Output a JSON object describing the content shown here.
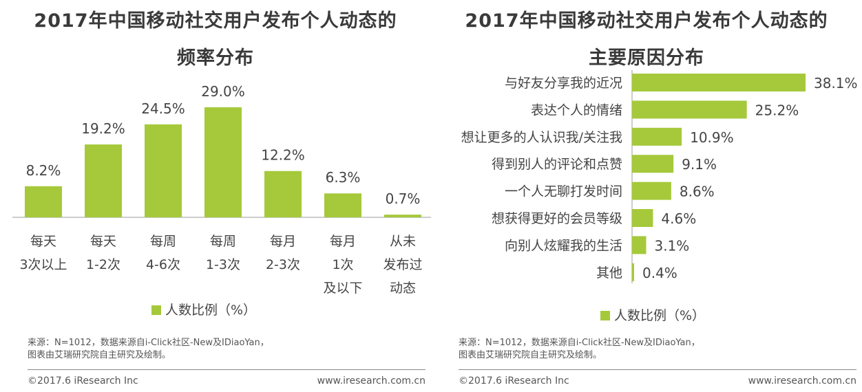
{
  "chart_data": [
    {
      "type": "bar",
      "orientation": "vertical",
      "title_line1": "2017年中国移动社交用户发布个人动态的",
      "title_line2": "频率分布",
      "categories": [
        [
          "每天",
          "3次以上"
        ],
        [
          "每天",
          "1-2次"
        ],
        [
          "每周",
          "4-6次"
        ],
        [
          "每周",
          "1-3次"
        ],
        [
          "每月",
          "2-3次"
        ],
        [
          "每月",
          "1次",
          "及以下"
        ],
        [
          "从未",
          "发布过",
          "动态"
        ]
      ],
      "values": [
        8.2,
        19.2,
        24.5,
        29.0,
        12.2,
        6.3,
        0.7
      ],
      "value_labels": [
        "8.2%",
        "19.2%",
        "24.5%",
        "29.0%",
        "12.2%",
        "6.3%",
        "0.7%"
      ],
      "legend": "人数比例（%）",
      "ylim": [
        0,
        35
      ]
    },
    {
      "type": "bar",
      "orientation": "horizontal",
      "title_line1": "2017年中国移动社交用户发布个人动态的",
      "title_line2": "主要原因分布",
      "categories": [
        "与好友分享我的近况",
        "表达个人的情绪",
        "想让更多的人认识我/关注我",
        "得到别人的评论和点赞",
        "一个人无聊打发时间",
        "想获得更好的会员等级",
        "向别人炫耀我的生活",
        "其他"
      ],
      "values": [
        38.1,
        25.2,
        10.9,
        9.1,
        8.6,
        4.6,
        3.1,
        0.4
      ],
      "value_labels": [
        "38.1%",
        "25.2%",
        "10.9%",
        "9.1%",
        "8.6%",
        "4.6%",
        "3.1%",
        "0.4%"
      ],
      "legend": "人数比例（%）",
      "xlim": [
        0,
        38.1
      ]
    }
  ],
  "footer": {
    "source_line1": "来源：N=1012，数据来源自i-Click社区-New及IDiaoYan，",
    "source_line2": "图表由艾瑞研究院自主研究及绘制。",
    "copyright": "©2017.6 iResearch Inc",
    "website": "www.iresearch.com.cn"
  },
  "colors": {
    "bar": "#a5c93a",
    "axis": "#999999"
  }
}
